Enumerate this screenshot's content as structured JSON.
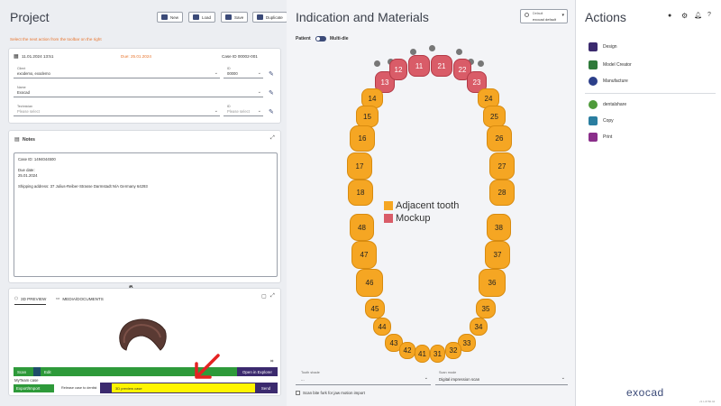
{
  "project": {
    "title": "Project",
    "buttons": [
      "New",
      "Load",
      "Save",
      "Duplicate"
    ],
    "hint": "Select the next action from the toolbar on the right",
    "date": "11.01.2024 13:51",
    "due": "Due: 25.01.2024",
    "case_id": "Case ID 00002-001",
    "client_label": "Client",
    "client_value": "exodemo, exodemo",
    "id_label": "ID",
    "client_id": "00000",
    "name_label": "Name",
    "name_value": "Exocad",
    "tech_label": "Technician",
    "tech_placeholder": "Please select",
    "tech_id_placeholder": "Please select"
  },
  "notes": {
    "title": "Notes",
    "lines": [
      "Case ID: 1494044500",
      "",
      "Due date:",
      "25.01.2024",
      "",
      "Shipping address: 37 Julius-Reiber-Strasse Darmstadt N/A Germany 64293"
    ]
  },
  "preview": {
    "tabs": [
      "3D PREVIEW",
      "MEDIA/DOCUMENTS"
    ],
    "scan_label": "Scan",
    "edit_label": "Edit",
    "explorer_label": "Open in Explorer",
    "mytree": "MyTeam case",
    "export_label": "Export/Import",
    "release_label": "Release case to dentist",
    "preview_label": "3D preview case",
    "send_label": "Send"
  },
  "indication": {
    "title": "Indication and Materials",
    "dropdown_top": "Default",
    "dropdown_val": "exocad default",
    "patient": "Patient",
    "multidie": "Multi-die",
    "legend": [
      {
        "label": "Adjacent tooth",
        "color": "#f5a623"
      },
      {
        "label": "Mockup",
        "color": "#d95c68"
      }
    ],
    "tooth_shade_label": "Tooth shade",
    "tooth_shade_value": "...",
    "scan_mode_label": "Scan mode",
    "scan_mode_value": "Digital impression scan",
    "scan_bite": "Scan bite fork for jaw motion import"
  },
  "teeth": {
    "upper": [
      "13",
      "12",
      "11",
      "21",
      "22",
      "23"
    ],
    "right": [
      "14",
      "15",
      "16",
      "17",
      "18"
    ],
    "left": [
      "24",
      "25",
      "26",
      "27",
      "28"
    ],
    "lower_right": [
      "48",
      "47",
      "46",
      "45",
      "44",
      "43",
      "42",
      "41"
    ],
    "lower_left": [
      "38",
      "37",
      "36",
      "35",
      "34",
      "33",
      "32",
      "31"
    ]
  },
  "actions": {
    "title": "Actions",
    "items": [
      {
        "label": "Design",
        "icon": "design-icon",
        "color": "#3b2a6e"
      },
      {
        "label": "Model Creator",
        "icon": "model-creator-icon",
        "color": "#2f7a3a"
      },
      {
        "label": "Manufacture",
        "icon": "manufacture-icon",
        "color": "#2c3f8a"
      },
      {
        "label": "dentalshare",
        "icon": "dentalshare-icon",
        "color": "#4e9a3a"
      },
      {
        "label": "Copy",
        "icon": "copy-icon",
        "color": "#2a7ea0"
      },
      {
        "label": "Print",
        "icon": "print-icon",
        "color": "#8a2e8a"
      }
    ],
    "brand": "exocad",
    "version": "v3.1.8780.94"
  }
}
